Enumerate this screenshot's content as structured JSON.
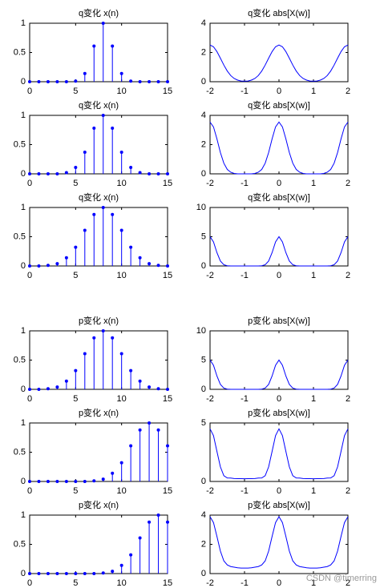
{
  "chart_data": [
    {
      "type": "stem",
      "title": "q变化  x(n)",
      "color": "#0000ff",
      "xlim": [
        0,
        15
      ],
      "ylim": [
        0,
        1
      ],
      "xticks": [
        0,
        5,
        10,
        15
      ],
      "yticks": [
        0,
        0.5,
        1
      ],
      "x": [
        0,
        1,
        2,
        3,
        4,
        5,
        6,
        7,
        8,
        9,
        10,
        11,
        12,
        13,
        14,
        15
      ],
      "values": [
        0,
        0,
        0,
        0,
        0,
        0.01,
        0.14,
        0.61,
        1,
        0.61,
        0.14,
        0.01,
        0,
        0,
        0,
        0
      ]
    },
    {
      "type": "line",
      "title": "q变化  abs[X(w)]",
      "color": "#0000ff",
      "xlim": [
        -2,
        2
      ],
      "ylim": [
        0,
        4
      ],
      "xticks": [
        -2,
        -1,
        0,
        1,
        2
      ],
      "yticks": [
        0,
        2,
        4
      ],
      "x": [
        -2,
        -1.9,
        -1.8,
        -1.7,
        -1.6,
        -1.5,
        -1.4,
        -1.3,
        -1.2,
        -1.1,
        -1,
        -0.9,
        -0.8,
        -0.7,
        -0.6,
        -0.5,
        -0.4,
        -0.3,
        -0.2,
        -0.1,
        0,
        0.1,
        0.2,
        0.3,
        0.4,
        0.5,
        0.6,
        0.7,
        0.8,
        0.9,
        1,
        1.1,
        1.2,
        1.3,
        1.4,
        1.5,
        1.6,
        1.7,
        1.8,
        1.9,
        2
      ],
      "values": [
        2.51,
        2.39,
        2.06,
        1.61,
        1.14,
        0.73,
        0.42,
        0.22,
        0.11,
        0.05,
        0.04,
        0.05,
        0.11,
        0.22,
        0.42,
        0.73,
        1.14,
        1.61,
        2.06,
        2.39,
        2.51,
        2.39,
        2.06,
        1.61,
        1.14,
        0.73,
        0.42,
        0.22,
        0.11,
        0.05,
        0.04,
        0.05,
        0.11,
        0.22,
        0.42,
        0.73,
        1.14,
        1.61,
        2.06,
        2.39,
        2.51
      ]
    },
    {
      "type": "stem",
      "title": "q变化  x(n)",
      "color": "#0000ff",
      "xlim": [
        0,
        15
      ],
      "ylim": [
        0,
        1
      ],
      "xticks": [
        0,
        5,
        10,
        15
      ],
      "yticks": [
        0,
        0.5,
        1
      ],
      "x": [
        0,
        1,
        2,
        3,
        4,
        5,
        6,
        7,
        8,
        9,
        10,
        11,
        12,
        13,
        14,
        15
      ],
      "values": [
        0,
        0,
        0,
        0,
        0.02,
        0.11,
        0.37,
        0.78,
        1,
        0.78,
        0.37,
        0.11,
        0.02,
        0,
        0,
        0
      ]
    },
    {
      "type": "line",
      "title": "q变化  abs[X(w)]",
      "color": "#0000ff",
      "xlim": [
        -2,
        2
      ],
      "ylim": [
        0,
        4
      ],
      "xticks": [
        -2,
        -1,
        0,
        1,
        2
      ],
      "yticks": [
        0,
        2,
        4
      ],
      "x": [
        -2,
        -1.9,
        -1.8,
        -1.7,
        -1.6,
        -1.5,
        -1.4,
        -1.3,
        -1.2,
        -1.1,
        -1,
        -0.9,
        -0.8,
        -0.7,
        -0.6,
        -0.5,
        -0.4,
        -0.3,
        -0.2,
        -0.1,
        0,
        0.1,
        0.2,
        0.3,
        0.4,
        0.5,
        0.6,
        0.7,
        0.8,
        0.9,
        1,
        1.1,
        1.2,
        1.3,
        1.4,
        1.5,
        1.6,
        1.7,
        1.8,
        1.9,
        2
      ],
      "values": [
        3.54,
        3.21,
        2.39,
        1.46,
        0.73,
        0.3,
        0.11,
        0.03,
        0,
        0,
        0,
        0,
        0,
        0.03,
        0.11,
        0.3,
        0.73,
        1.46,
        2.39,
        3.21,
        3.54,
        3.21,
        2.39,
        1.46,
        0.73,
        0.3,
        0.11,
        0.03,
        0,
        0,
        0,
        0,
        0,
        0.03,
        0.11,
        0.3,
        0.73,
        1.46,
        2.39,
        3.21,
        3.54
      ]
    },
    {
      "type": "stem",
      "title": "q变化  x(n)",
      "color": "#0000ff",
      "xlim": [
        0,
        15
      ],
      "ylim": [
        0,
        1
      ],
      "xticks": [
        0,
        5,
        10,
        15
      ],
      "yticks": [
        0,
        0.5,
        1
      ],
      "x": [
        0,
        1,
        2,
        3,
        4,
        5,
        6,
        7,
        8,
        9,
        10,
        11,
        12,
        13,
        14,
        15
      ],
      "values": [
        0,
        0,
        0.01,
        0.04,
        0.14,
        0.32,
        0.61,
        0.88,
        1,
        0.88,
        0.61,
        0.32,
        0.14,
        0.04,
        0.01,
        0
      ]
    },
    {
      "type": "line",
      "title": "q变化  abs[X(w)]",
      "color": "#0000ff",
      "xlim": [
        -2,
        2
      ],
      "ylim": [
        0,
        10
      ],
      "xticks": [
        -2,
        -1,
        0,
        1,
        2
      ],
      "yticks": [
        0,
        5,
        10
      ],
      "x": [
        -2,
        -1.9,
        -1.8,
        -1.7,
        -1.6,
        -1.5,
        -1.4,
        -1.3,
        -1.2,
        -1.1,
        -1,
        -0.9,
        -0.8,
        -0.7,
        -0.6,
        -0.5,
        -0.4,
        -0.3,
        -0.2,
        -0.1,
        0,
        0.1,
        0.2,
        0.3,
        0.4,
        0.5,
        0.6,
        0.7,
        0.8,
        0.9,
        1,
        1.1,
        1.2,
        1.3,
        1.4,
        1.5,
        1.6,
        1.7,
        1.8,
        1.9,
        2
      ],
      "values": [
        5.01,
        4.12,
        2.28,
        0.85,
        0.21,
        0.04,
        0,
        0,
        0,
        0,
        0,
        0,
        0,
        0,
        0,
        0.04,
        0.21,
        0.85,
        2.28,
        4.12,
        5.01,
        4.12,
        2.28,
        0.85,
        0.21,
        0.04,
        0,
        0,
        0,
        0,
        0,
        0,
        0,
        0,
        0,
        0.04,
        0.21,
        0.85,
        2.28,
        4.12,
        5.01
      ]
    },
    {
      "type": "stem",
      "title": "p变化  x(n)",
      "color": "#0000ff",
      "xlim": [
        0,
        15
      ],
      "ylim": [
        0,
        1
      ],
      "xticks": [
        0,
        5,
        10,
        15
      ],
      "yticks": [
        0,
        0.5,
        1
      ],
      "x": [
        0,
        1,
        2,
        3,
        4,
        5,
        6,
        7,
        8,
        9,
        10,
        11,
        12,
        13,
        14,
        15
      ],
      "values": [
        0,
        0,
        0.01,
        0.04,
        0.14,
        0.32,
        0.61,
        0.88,
        1,
        0.88,
        0.61,
        0.32,
        0.14,
        0.04,
        0.01,
        0
      ]
    },
    {
      "type": "line",
      "title": "p变化  abs[X(w)]",
      "color": "#0000ff",
      "xlim": [
        -2,
        2
      ],
      "ylim": [
        0,
        10
      ],
      "xticks": [
        -2,
        -1,
        0,
        1,
        2
      ],
      "yticks": [
        0,
        5,
        10
      ],
      "x": [
        -2,
        -1.9,
        -1.8,
        -1.7,
        -1.6,
        -1.5,
        -1.4,
        -1.3,
        -1.2,
        -1.1,
        -1,
        -0.9,
        -0.8,
        -0.7,
        -0.6,
        -0.5,
        -0.4,
        -0.3,
        -0.2,
        -0.1,
        0,
        0.1,
        0.2,
        0.3,
        0.4,
        0.5,
        0.6,
        0.7,
        0.8,
        0.9,
        1,
        1.1,
        1.2,
        1.3,
        1.4,
        1.5,
        1.6,
        1.7,
        1.8,
        1.9,
        2
      ],
      "values": [
        5.01,
        4.12,
        2.28,
        0.85,
        0.21,
        0.04,
        0,
        0,
        0,
        0,
        0,
        0,
        0,
        0,
        0,
        0.04,
        0.21,
        0.85,
        2.28,
        4.12,
        5.01,
        4.12,
        2.28,
        0.85,
        0.21,
        0.04,
        0,
        0,
        0,
        0,
        0,
        0,
        0,
        0,
        0,
        0.04,
        0.21,
        0.85,
        2.28,
        4.12,
        5.01
      ]
    },
    {
      "type": "stem",
      "title": "p变化  x(n)",
      "color": "#0000ff",
      "xlim": [
        0,
        15
      ],
      "ylim": [
        0,
        1
      ],
      "xticks": [
        0,
        5,
        10,
        15
      ],
      "yticks": [
        0,
        0.5,
        1
      ],
      "x": [
        0,
        1,
        2,
        3,
        4,
        5,
        6,
        7,
        8,
        9,
        10,
        11,
        12,
        13,
        14,
        15
      ],
      "values": [
        0,
        0,
        0,
        0,
        0,
        0,
        0,
        0.01,
        0.04,
        0.14,
        0.32,
        0.61,
        0.88,
        1,
        0.88,
        0.61
      ]
    },
    {
      "type": "line",
      "title": "p变化  abs[X(w)]",
      "color": "#0000ff",
      "xlim": [
        -2,
        2
      ],
      "ylim": [
        0,
        5
      ],
      "xticks": [
        -2,
        -1,
        0,
        1,
        2
      ],
      "yticks": [
        0,
        5
      ],
      "x": [
        -2,
        -1.9,
        -1.8,
        -1.7,
        -1.6,
        -1.5,
        -1.4,
        -1.3,
        -1.2,
        -1.1,
        -1,
        -0.9,
        -0.8,
        -0.7,
        -0.6,
        -0.5,
        -0.4,
        -0.3,
        -0.2,
        -0.1,
        0,
        0.1,
        0.2,
        0.3,
        0.4,
        0.5,
        0.6,
        0.7,
        0.8,
        0.9,
        1,
        1.1,
        1.2,
        1.3,
        1.4,
        1.5,
        1.6,
        1.7,
        1.8,
        1.9,
        2
      ],
      "values": [
        4.5,
        3.92,
        2.57,
        1.25,
        0.49,
        0.3,
        0.29,
        0.25,
        0.24,
        0.24,
        0.23,
        0.24,
        0.24,
        0.25,
        0.29,
        0.3,
        0.49,
        1.25,
        2.57,
        3.92,
        4.5,
        3.92,
        2.57,
        1.25,
        0.49,
        0.3,
        0.29,
        0.25,
        0.24,
        0.24,
        0.23,
        0.24,
        0.24,
        0.25,
        0.29,
        0.3,
        0.49,
        1.25,
        2.57,
        3.92,
        4.5
      ]
    },
    {
      "type": "stem",
      "title": "p变化  x(n)",
      "color": "#0000ff",
      "xlim": [
        0,
        15
      ],
      "ylim": [
        0,
        1
      ],
      "xticks": [
        0,
        5,
        10,
        15
      ],
      "yticks": [
        0,
        0.5,
        1
      ],
      "x": [
        0,
        1,
        2,
        3,
        4,
        5,
        6,
        7,
        8,
        9,
        10,
        11,
        12,
        13,
        14,
        15
      ],
      "values": [
        0,
        0,
        0,
        0,
        0,
        0,
        0,
        0,
        0.01,
        0.04,
        0.14,
        0.32,
        0.61,
        0.88,
        1,
        0.88
      ]
    },
    {
      "type": "line",
      "title": "p变化  abs[X(w)]",
      "color": "#0000ff",
      "xlim": [
        -2,
        2
      ],
      "ylim": [
        0,
        4
      ],
      "xticks": [
        -2,
        -1,
        0,
        1,
        2
      ],
      "yticks": [
        0,
        2,
        4
      ],
      "x": [
        -2,
        -1.9,
        -1.8,
        -1.7,
        -1.6,
        -1.5,
        -1.4,
        -1.3,
        -1.2,
        -1.1,
        -1,
        -0.9,
        -0.8,
        -0.7,
        -0.6,
        -0.5,
        -0.4,
        -0.3,
        -0.2,
        -0.1,
        0,
        0.1,
        0.2,
        0.3,
        0.4,
        0.5,
        0.6,
        0.7,
        0.8,
        0.9,
        1,
        1.1,
        1.2,
        1.3,
        1.4,
        1.5,
        1.6,
        1.7,
        1.8,
        1.9,
        2
      ],
      "values": [
        3.89,
        3.49,
        2.54,
        1.54,
        0.87,
        0.59,
        0.48,
        0.44,
        0.4,
        0.38,
        0.38,
        0.38,
        0.4,
        0.44,
        0.48,
        0.59,
        0.87,
        1.54,
        2.54,
        3.49,
        3.89,
        3.49,
        2.54,
        1.54,
        0.87,
        0.59,
        0.48,
        0.44,
        0.4,
        0.38,
        0.38,
        0.38,
        0.4,
        0.44,
        0.48,
        0.59,
        0.87,
        1.54,
        2.54,
        3.49,
        3.89
      ]
    }
  ],
  "watermark": "CSDN @timerring"
}
